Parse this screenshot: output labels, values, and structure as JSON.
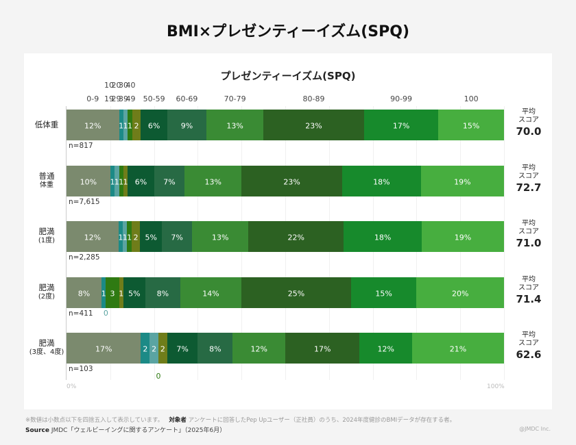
{
  "title": "BMI×プレゼンティーイズム(SPQ)",
  "chart_data": {
    "type": "bar",
    "stacked": true,
    "orientation": "horizontal",
    "title": "プレゼンティーイズム(SPQ)",
    "categories": [
      "低体重",
      "普通体重",
      "肥満(1度)",
      "肥満(2度)",
      "肥満(3度、4度)"
    ],
    "category_lines": [
      [
        "低体重"
      ],
      [
        "普通",
        "体重"
      ],
      [
        "肥満",
        "(1度)"
      ],
      [
        "肥満",
        "(2度)"
      ],
      [
        "肥満",
        "(3度、4度)"
      ]
    ],
    "series_labels": [
      "0-9",
      "10-19",
      "20-29",
      "30-39",
      "40-49",
      "50-59",
      "60-69",
      "70-79",
      "80-89",
      "90-99",
      "100"
    ],
    "series_label_tops": [
      "10",
      "20",
      "30",
      "40"
    ],
    "series_label_bottoms": [
      "19",
      "29",
      "39",
      "49"
    ],
    "colors": [
      "#7b8a6e",
      "#1c8a86",
      "#5aa4a2",
      "#2f7a12",
      "#6f7d1a",
      "#0d5a32",
      "#276a44",
      "#3a8b34",
      "#2c6122",
      "#178a2c",
      "#47ae3f"
    ],
    "values": [
      [
        12,
        1,
        1,
        1,
        2,
        6,
        9,
        13,
        23,
        17,
        15
      ],
      [
        10,
        1,
        1,
        1,
        1,
        6,
        7,
        13,
        23,
        18,
        19
      ],
      [
        12,
        1,
        1,
        1,
        2,
        5,
        7,
        13,
        22,
        18,
        19
      ],
      [
        8,
        1,
        0,
        3,
        1,
        5,
        8,
        14,
        25,
        15,
        20
      ],
      [
        17,
        2,
        2,
        0,
        2,
        7,
        8,
        12,
        17,
        12,
        21
      ]
    ],
    "n": [
      "n=817",
      "n=7,615",
      "n=2,285",
      "n=411",
      "n=103"
    ],
    "avg_label": [
      "平均",
      "スコア"
    ],
    "avg_scores": [
      "70.0",
      "72.7",
      "71.0",
      "71.4",
      "62.6"
    ],
    "xlim": [
      0,
      100
    ],
    "x_ticks": [
      "0%",
      "100%"
    ],
    "unit_suffix": "%"
  },
  "footer": {
    "note": "※数値は小数点以下を四捨五入して表示しています。",
    "target_label": "対象者",
    "target_text": "アンケートに回答したPep Upユーザー（正社員）のうち、2024年度健診のBMIデータが存在する者。",
    "source_label": "Source",
    "source_text": "JMDC「ウェルビーイングに関するアンケート」（2025年6月）",
    "copyright": "@JMDC Inc."
  }
}
